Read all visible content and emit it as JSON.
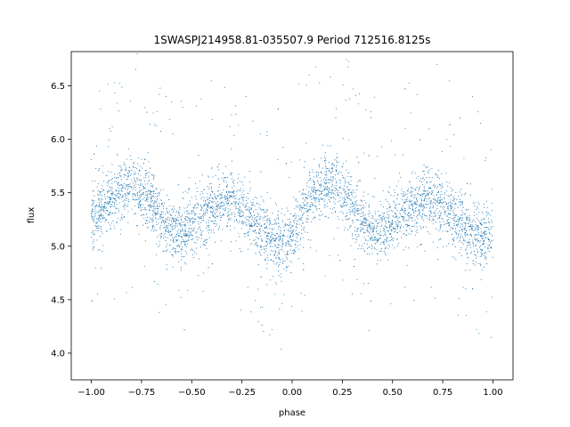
{
  "chart_data": {
    "type": "scatter",
    "title": "1SWASPJ214958.81-035507.9 Period 712516.8125s",
    "xlabel": "phase",
    "ylabel": "flux",
    "xlim": [
      -1.1,
      1.1
    ],
    "ylim": [
      3.75,
      6.82
    ],
    "xticks": [
      -1.0,
      -0.75,
      -0.5,
      -0.25,
      0.0,
      0.25,
      0.5,
      0.75,
      1.0
    ],
    "xtick_labels": [
      "−1.00",
      "−0.75",
      "−0.50",
      "−0.25",
      "0.00",
      "0.25",
      "0.50",
      "0.75",
      "1.00"
    ],
    "yticks": [
      4.0,
      4.5,
      5.0,
      5.5,
      6.0,
      6.5
    ],
    "ytick_labels": [
      "4.0",
      "4.5",
      "5.0",
      "5.5",
      "6.0",
      "6.5"
    ],
    "grid": false,
    "marker_color": "#1f77b4",
    "series": [
      {
        "x": [
          -1.0,
          -0.95,
          -0.9,
          -0.85,
          -0.8,
          -0.75,
          -0.7,
          -0.65,
          -0.6,
          -0.55,
          -0.5,
          -0.45,
          -0.4,
          -0.35,
          -0.3,
          -0.25,
          -0.2,
          -0.15,
          -0.1,
          -0.05,
          0.0,
          0.05,
          0.1,
          0.15,
          0.2,
          0.25,
          0.3,
          0.35,
          0.4,
          0.45,
          0.5,
          0.55,
          0.6,
          0.65,
          0.7,
          0.75,
          0.8,
          0.85,
          0.9,
          0.95,
          1.0
        ],
        "y": [
          5.2,
          5.35,
          5.45,
          5.55,
          5.58,
          5.5,
          5.4,
          5.25,
          5.15,
          5.1,
          5.2,
          5.28,
          5.35,
          5.42,
          5.45,
          5.35,
          5.25,
          5.15,
          5.08,
          5.0,
          5.1,
          5.3,
          5.45,
          5.55,
          5.58,
          5.5,
          5.4,
          5.25,
          5.15,
          5.12,
          5.2,
          5.3,
          5.35,
          5.42,
          5.45,
          5.38,
          5.28,
          5.18,
          5.1,
          5.05,
          5.15
        ]
      }
    ]
  }
}
